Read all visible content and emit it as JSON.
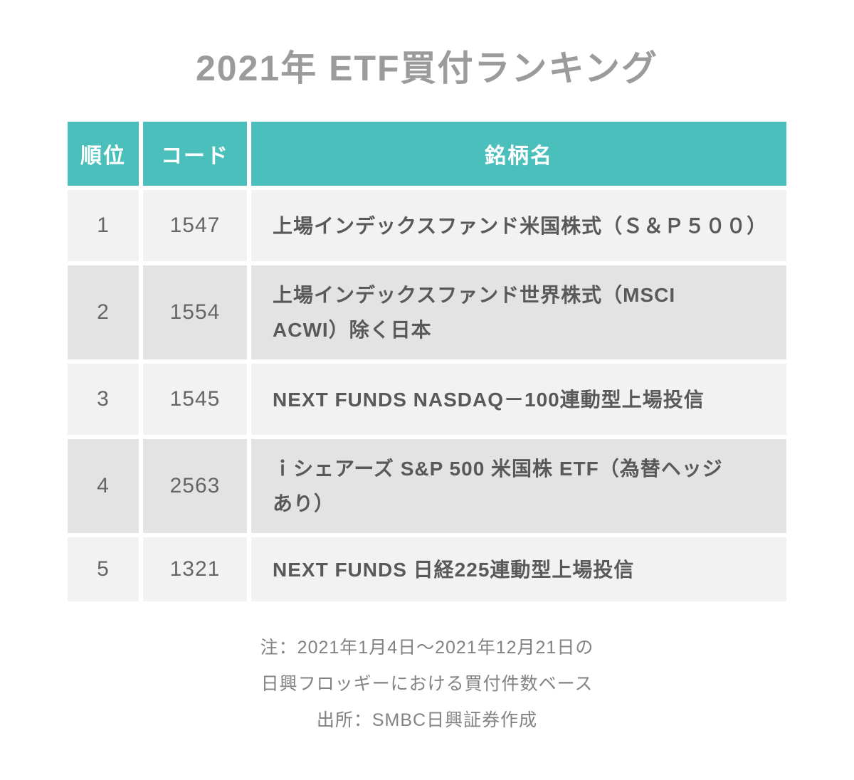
{
  "title": "2021年 ETF買付ランキング",
  "table": {
    "headers": {
      "rank": "順位",
      "code": "コード",
      "name": "銘柄名"
    },
    "rows": [
      {
        "rank": "1",
        "code": "1547",
        "name": "上場インデックスファンド米国株式（Ｓ＆Ｐ５００）"
      },
      {
        "rank": "2",
        "code": "1554",
        "name": "上場インデックスファンド世界株式（MSCI\nACWI）除く日本"
      },
      {
        "rank": "3",
        "code": "1545",
        "name": "NEXT FUNDS NASDAQ－100連動型上場投信"
      },
      {
        "rank": "4",
        "code": "2563",
        "name": "ｉシェアーズ S&P 500 米国株 ETF（為替ヘッジ\nあり）"
      },
      {
        "rank": "5",
        "code": "1321",
        "name": "NEXT FUNDS 日経225連動型上場投信"
      }
    ]
  },
  "notes": {
    "line1": "注：2021年1月4日～2021年12月21日の",
    "line2": "日興フロッギーにおける買付件数ベース",
    "line3": "出所：SMBC日興証券作成"
  },
  "colors": {
    "accent_teal": "#4bbfbc",
    "row_light": "#f2f2f2",
    "row_dark": "#e3e3e3",
    "title_gray": "#9b9b9b",
    "number_gray": "#666666",
    "name_gray": "#595959",
    "note_gray": "#828282"
  },
  "chart_data": {
    "type": "table",
    "title": "2021年 ETF買付ランキング",
    "columns": [
      "順位",
      "コード",
      "銘柄名"
    ],
    "rows": [
      [
        "1",
        "1547",
        "上場インデックスファンド米国株式（Ｓ＆Ｐ５００）"
      ],
      [
        "2",
        "1554",
        "上場インデックスファンド世界株式（MSCI ACWI）除く日本"
      ],
      [
        "3",
        "1545",
        "NEXT FUNDS NASDAQ－100連動型上場投信"
      ],
      [
        "4",
        "2563",
        "ｉシェアーズ S&P 500 米国株 ETF（為替ヘッジあり）"
      ],
      [
        "5",
        "1321",
        "NEXT FUNDS 日経225連動型上場投信"
      ]
    ],
    "annotations": [
      "注：2021年1月4日～2021年12月21日の",
      "日興フロッギーにおける買付件数ベース",
      "出所：SMBC日興証券作成"
    ],
    "layout": {
      "header_color": "#4bbfbc",
      "zebra_colors": [
        "#f2f2f2",
        "#e3e3e3"
      ],
      "grid": "white-gaps"
    }
  }
}
